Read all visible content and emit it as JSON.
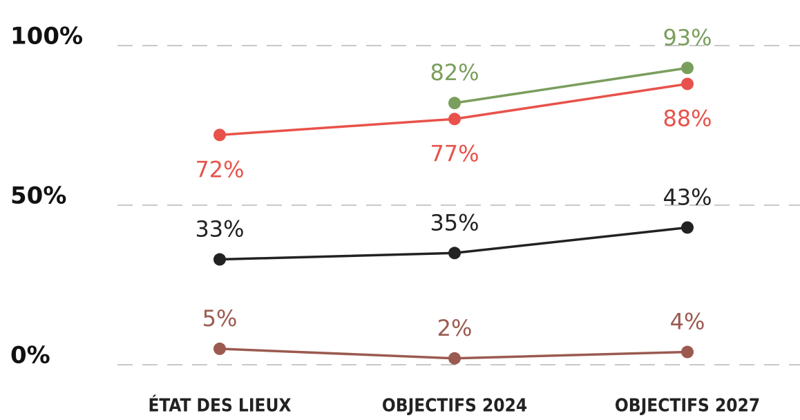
{
  "chart_data": {
    "type": "line",
    "categories": [
      "ÉTAT DES LIEUX",
      "OBJECTIFS 2024",
      "OBJECTIFS 2027"
    ],
    "series": [
      {
        "color": "#7a9e5c",
        "values": [
          null,
          82,
          93
        ],
        "value_labels": [
          null,
          "82%",
          "93%"
        ]
      },
      {
        "color": "#e8524a",
        "values": [
          72,
          77,
          88
        ],
        "value_labels": [
          "72%",
          "77%",
          "88%"
        ]
      },
      {
        "color": "#222222",
        "values": [
          33,
          35,
          43
        ],
        "value_labels": [
          "33%",
          "35%",
          "43%"
        ]
      },
      {
        "color": "#9b5a50",
        "values": [
          5,
          2,
          4
        ],
        "value_labels": [
          "5%",
          "2%",
          "4%"
        ]
      }
    ],
    "ylim": [
      0,
      100
    ],
    "yticks": [
      {
        "value": 0,
        "label": "0%"
      },
      {
        "value": 50,
        "label": "50%"
      },
      {
        "value": 100,
        "label": "100%"
      }
    ],
    "grid": true
  }
}
